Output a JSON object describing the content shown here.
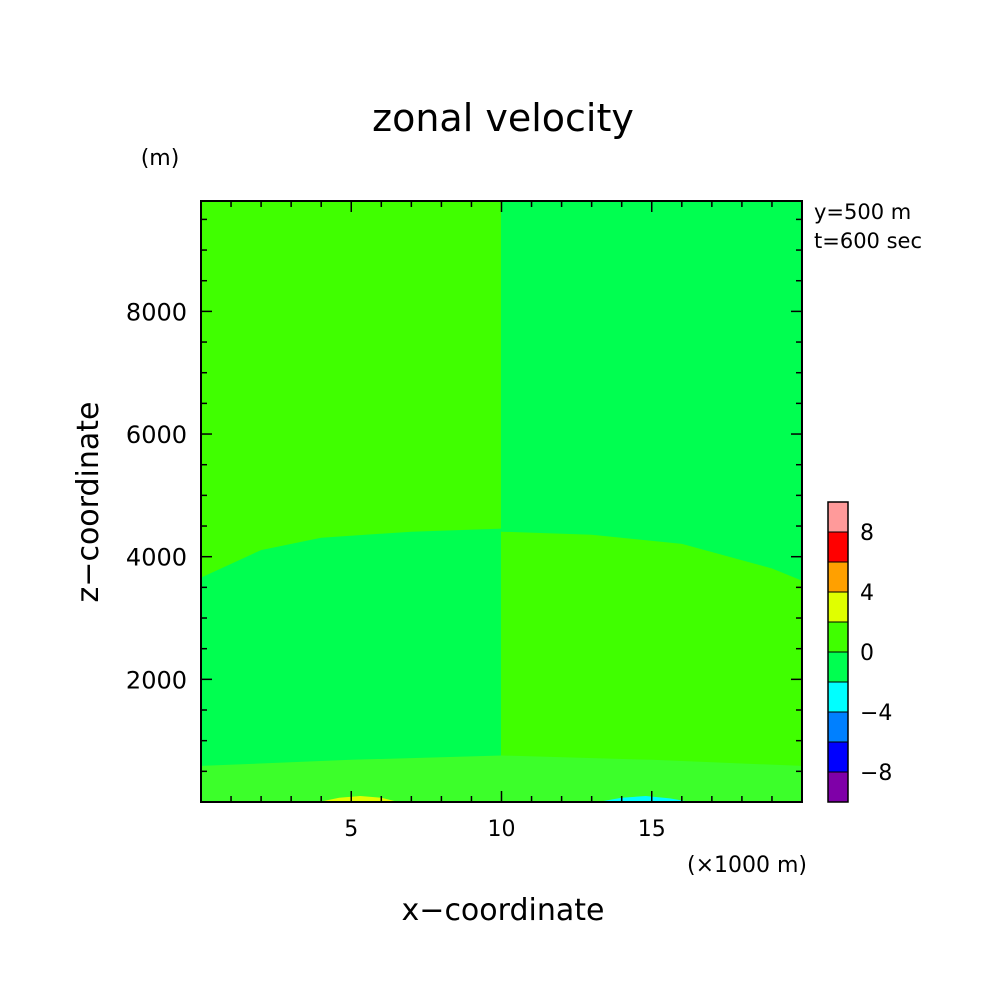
{
  "chart_data": {
    "type": "heatmap",
    "title": "zonal velocity",
    "xlabel": "x−coordinate",
    "ylabel": "z−coordinate",
    "x_unit": "(×1000 m)",
    "y_unit": "(m)",
    "annotations": [
      "y=500 m",
      "t=600 sec"
    ],
    "xlim": [
      0,
      20
    ],
    "ylim": [
      0,
      9800
    ],
    "xticks": [
      5,
      10,
      15
    ],
    "xtick_labels": [
      "5",
      "10",
      "15"
    ],
    "yticks": [
      2000,
      4000,
      6000,
      8000
    ],
    "ytick_labels": [
      "2000",
      "4000",
      "6000",
      "8000"
    ],
    "colorbar": {
      "levels": [
        -10,
        -8,
        -6,
        -4,
        -2,
        0,
        2,
        4,
        6,
        8,
        10
      ],
      "colors": [
        "#7f00a8",
        "#0000ff",
        "#0080ff",
        "#00ffff",
        "#00ff50",
        "#40ff00",
        "#e0ff00",
        "#ffa000",
        "#ff0000",
        "#ff9a9a"
      ],
      "labels": [
        "−8",
        "−4",
        "0",
        "4",
        "8"
      ],
      "label_values": [
        -8,
        -4,
        0,
        4,
        8
      ]
    },
    "regions": [
      {
        "name": "upper-left",
        "value_range": [
          0,
          2
        ],
        "color": "#40ff00",
        "boundary": [
          [
            0,
            9800
          ],
          [
            10,
            9800
          ],
          [
            10,
            4450
          ],
          [
            7,
            4400
          ],
          [
            4,
            4300
          ],
          [
            2,
            4100
          ],
          [
            0,
            3650
          ]
        ]
      },
      {
        "name": "upper-right",
        "value_range": [
          -2,
          0
        ],
        "color": "#00ff50",
        "boundary": [
          [
            10,
            9800
          ],
          [
            20,
            9800
          ],
          [
            20,
            3600
          ],
          [
            19,
            3800
          ],
          [
            16,
            4200
          ],
          [
            13,
            4350
          ],
          [
            10,
            4400
          ]
        ]
      },
      {
        "name": "middle-left",
        "value_range": [
          -2,
          0
        ],
        "color": "#00ff50",
        "boundary": [
          [
            0,
            3650
          ],
          [
            2,
            4100
          ],
          [
            4,
            4300
          ],
          [
            7,
            4400
          ],
          [
            10,
            4450
          ],
          [
            10,
            750
          ],
          [
            5,
            680
          ],
          [
            0,
            580
          ]
        ]
      },
      {
        "name": "middle-right",
        "value_range": [
          0,
          2
        ],
        "color": "#40ff00",
        "boundary": [
          [
            10,
            4400
          ],
          [
            13,
            4350
          ],
          [
            16,
            4200
          ],
          [
            19,
            3800
          ],
          [
            20,
            3600
          ],
          [
            20,
            580
          ],
          [
            15,
            680
          ],
          [
            10,
            750
          ]
        ]
      },
      {
        "name": "bottom",
        "value_range": [
          -2,
          2
        ],
        "color": "#3cff2a",
        "boundary": [
          [
            0,
            580
          ],
          [
            5,
            680
          ],
          [
            10,
            750
          ],
          [
            15,
            680
          ],
          [
            20,
            580
          ],
          [
            20,
            0
          ],
          [
            0,
            0
          ]
        ]
      },
      {
        "name": "positive-patch",
        "value_range": [
          2,
          4
        ],
        "color": "#e0ff00",
        "boundary": [
          [
            4.0,
            0
          ],
          [
            4.6,
            60
          ],
          [
            5.3,
            90
          ],
          [
            6.0,
            60
          ],
          [
            6.5,
            0
          ]
        ]
      },
      {
        "name": "negative-patch",
        "value_range": [
          -4,
          -2
        ],
        "color": "#00ffff",
        "boundary": [
          [
            13.3,
            0
          ],
          [
            14.0,
            60
          ],
          [
            14.8,
            90
          ],
          [
            15.6,
            50
          ],
          [
            16.2,
            0
          ]
        ]
      }
    ]
  }
}
